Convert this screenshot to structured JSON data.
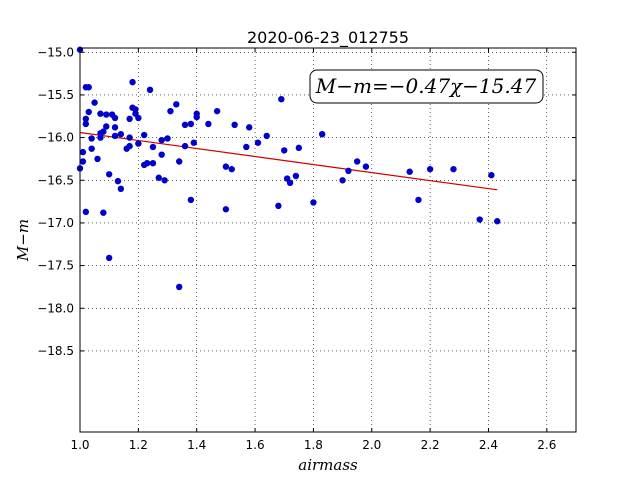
{
  "chart_data": {
    "type": "scatter",
    "title": "2020-06-23_012755",
    "xlabel": "airmass",
    "ylabel": "M−m",
    "xlim": [
      1.0,
      2.7
    ],
    "ylim": [
      -14.95,
      -19.45
    ],
    "y_inverted": true,
    "grid": true,
    "grid_style": "dotted",
    "annotation": "M−m=−0.47χ−15.47",
    "annotation_placement": "top-right",
    "xticks": [
      1.0,
      1.2,
      1.4,
      1.6,
      1.8,
      2.0,
      2.2,
      2.4,
      2.6
    ],
    "xtick_labels": [
      "1.0",
      "1.2",
      "1.4",
      "1.6",
      "1.8",
      "2.0",
      "2.2",
      "2.4",
      "2.6"
    ],
    "yticks": [
      -15.0,
      -15.5,
      -16.0,
      -16.5,
      -17.0,
      -17.5,
      -18.0,
      -18.5
    ],
    "ytick_labels": [
      "−15.0",
      "−15.5",
      "−16.0",
      "−16.5",
      "−17.0",
      "−17.5",
      "−18.0",
      "−18.5"
    ],
    "colors": {
      "points": "#0000cc",
      "fit": "#cc0000"
    },
    "fit": {
      "slope": -0.47,
      "intercept": -15.47,
      "x_range": [
        1.0,
        2.43
      ]
    },
    "series": [
      {
        "values": [
          [
            1.0,
            -14.97
          ],
          [
            1.0,
            -16.36
          ],
          [
            1.01,
            -16.28
          ],
          [
            1.01,
            -16.17
          ],
          [
            1.02,
            -15.41
          ],
          [
            1.02,
            -15.78
          ],
          [
            1.02,
            -15.84
          ],
          [
            1.02,
            -16.87
          ],
          [
            1.03,
            -15.41
          ],
          [
            1.03,
            -15.7
          ],
          [
            1.04,
            -16.01
          ],
          [
            1.04,
            -16.13
          ],
          [
            1.05,
            -15.59
          ],
          [
            1.06,
            -16.25
          ],
          [
            1.07,
            -15.72
          ],
          [
            1.07,
            -15.95
          ],
          [
            1.07,
            -16.0
          ],
          [
            1.08,
            -15.93
          ],
          [
            1.08,
            -16.88
          ],
          [
            1.09,
            -15.73
          ],
          [
            1.09,
            -15.87
          ],
          [
            1.1,
            -16.43
          ],
          [
            1.1,
            -17.41
          ],
          [
            1.11,
            -15.73
          ],
          [
            1.12,
            -15.77
          ],
          [
            1.12,
            -15.88
          ],
          [
            1.12,
            -15.98
          ],
          [
            1.13,
            -16.51
          ],
          [
            1.14,
            -15.96
          ],
          [
            1.14,
            -16.6
          ],
          [
            1.16,
            -16.13
          ],
          [
            1.17,
            -15.78
          ],
          [
            1.17,
            -16.0
          ],
          [
            1.17,
            -16.1
          ],
          [
            1.18,
            -15.35
          ],
          [
            1.18,
            -15.65
          ],
          [
            1.19,
            -15.67
          ],
          [
            1.19,
            -15.72
          ],
          [
            1.2,
            -16.07
          ],
          [
            1.2,
            -15.77
          ],
          [
            1.22,
            -15.97
          ],
          [
            1.22,
            -16.32
          ],
          [
            1.23,
            -16.3
          ],
          [
            1.24,
            -15.44
          ],
          [
            1.25,
            -16.3
          ],
          [
            1.25,
            -16.11
          ],
          [
            1.27,
            -16.47
          ],
          [
            1.28,
            -16.03
          ],
          [
            1.28,
            -16.2
          ],
          [
            1.29,
            -16.5
          ],
          [
            1.3,
            -16.01
          ],
          [
            1.31,
            -15.69
          ],
          [
            1.33,
            -15.61
          ],
          [
            1.34,
            -16.28
          ],
          [
            1.34,
            -17.75
          ],
          [
            1.36,
            -16.1
          ],
          [
            1.36,
            -15.85
          ],
          [
            1.38,
            -15.84
          ],
          [
            1.39,
            -16.06
          ],
          [
            1.4,
            -15.72
          ],
          [
            1.4,
            -15.76
          ],
          [
            1.38,
            -16.73
          ],
          [
            1.44,
            -15.84
          ],
          [
            1.47,
            -15.69
          ],
          [
            1.5,
            -16.34
          ],
          [
            1.5,
            -16.84
          ],
          [
            1.52,
            -16.37
          ],
          [
            1.53,
            -15.85
          ],
          [
            1.57,
            -16.11
          ],
          [
            1.58,
            -15.88
          ],
          [
            1.61,
            -16.06
          ],
          [
            1.64,
            -15.98
          ],
          [
            1.68,
            -16.8
          ],
          [
            1.69,
            -15.55
          ],
          [
            1.7,
            -16.15
          ],
          [
            1.71,
            -16.48
          ],
          [
            1.72,
            -16.53
          ],
          [
            1.74,
            -16.45
          ],
          [
            1.75,
            -16.12
          ],
          [
            1.8,
            -16.76
          ],
          [
            1.83,
            -15.96
          ],
          [
            1.9,
            -16.5
          ],
          [
            1.92,
            -16.39
          ],
          [
            1.95,
            -16.28
          ],
          [
            1.98,
            -16.34
          ],
          [
            2.13,
            -16.4
          ],
          [
            2.16,
            -16.73
          ],
          [
            2.2,
            -16.37
          ],
          [
            2.28,
            -16.37
          ],
          [
            2.37,
            -16.96
          ],
          [
            2.41,
            -16.44
          ],
          [
            2.43,
            -16.98
          ]
        ]
      }
    ]
  }
}
